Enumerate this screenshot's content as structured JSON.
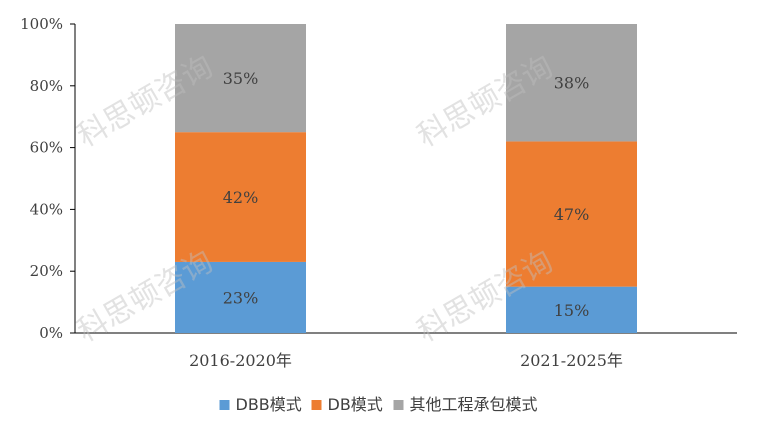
{
  "chart_data": {
    "type": "bar",
    "stacked": true,
    "categories": [
      "2016-2020年",
      "2021-2025年"
    ],
    "series": [
      {
        "name": "DBB模式",
        "values": [
          23,
          15
        ],
        "labels": [
          "23%",
          "15%"
        ],
        "color": "#5b9bd5"
      },
      {
        "name": "DB模式",
        "values": [
          42,
          47
        ],
        "labels": [
          "42%",
          "47%"
        ],
        "color": "#ed7d31"
      },
      {
        "name": "其他工程承包模式",
        "values": [
          35,
          38
        ],
        "labels": [
          "35%",
          "38%"
        ],
        "color": "#a5a5a5"
      }
    ],
    "ylim": [
      0,
      100
    ],
    "yticks": [
      "0%",
      "20%",
      "40%",
      "60%",
      "80%",
      "100%"
    ],
    "grid": false,
    "legend_position": "bottom"
  },
  "watermark": "科思顿咨询",
  "colors": {
    "axis": "#000000",
    "text": "#404040"
  }
}
